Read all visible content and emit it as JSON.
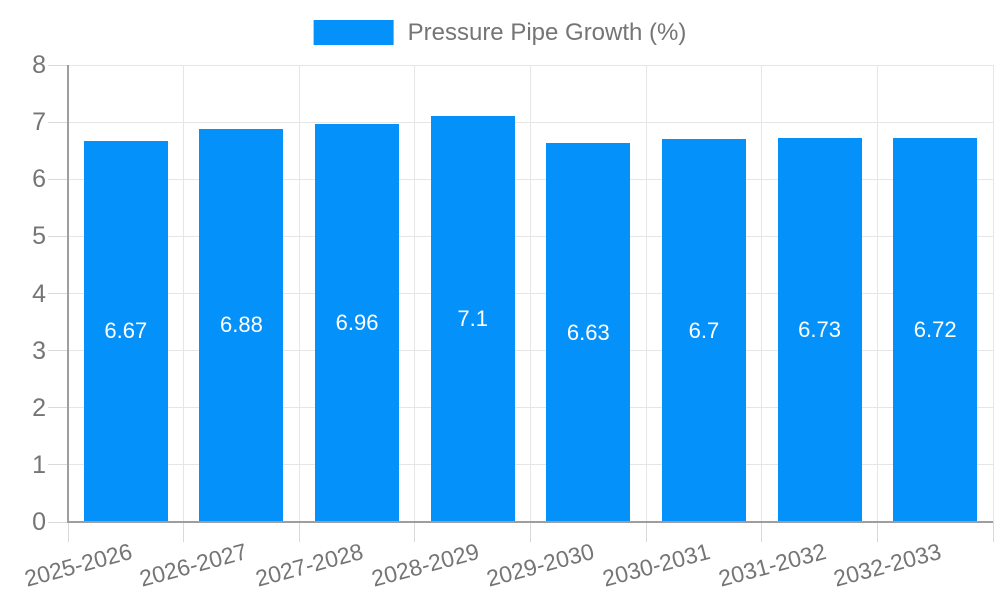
{
  "legend": {
    "label": "Pressure Pipe Growth (%)"
  },
  "colors": {
    "bar": "#0591fa",
    "grid_line": "#e6e6e6",
    "axis_line": "#9e9e9e",
    "tick_line": "#d9d9d9",
    "text": "#757575",
    "value_text": "#ffffff",
    "background": "#ffffff"
  },
  "chart_data": {
    "type": "bar",
    "title": "",
    "categories": [
      "2025-2026",
      "2026-2027",
      "2027-2028",
      "2028-2029",
      "2029-2030",
      "2030-2031",
      "2031-2032",
      "2032-2033"
    ],
    "series": [
      {
        "name": "Pressure Pipe Growth (%)",
        "values": [
          6.67,
          6.88,
          6.96,
          7.1,
          6.63,
          6.7,
          6.73,
          6.72
        ]
      }
    ],
    "value_labels": [
      "6.67",
      "6.88",
      "6.96",
      "7.1",
      "6.63",
      "6.7",
      "6.73",
      "6.72"
    ],
    "xlabel": "",
    "ylabel": "",
    "ylim": [
      0,
      8
    ],
    "yticks": [
      0,
      1,
      2,
      3,
      4,
      5,
      6,
      7,
      8
    ],
    "grid": true,
    "legend_position": "top-center",
    "bar_label_position": "inside-center",
    "x_label_rotation_deg": -15
  }
}
